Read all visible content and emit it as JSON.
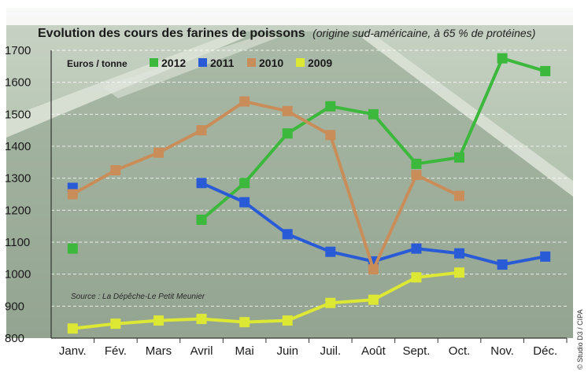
{
  "chart_data": {
    "type": "line",
    "title": "Evolution des cours des farines de poissons",
    "subtitle": "(origine sud-américaine, à 65 % de protéines)",
    "unit_label": "Euros / tonne",
    "source": "Source : La Dépêche-Le Petit Meunier",
    "credit": "© Studio D3 / CIPA",
    "categories": [
      "Janv.",
      "Fév.",
      "Mars",
      "Avril",
      "Mai",
      "Juin",
      "Juil.",
      "Août",
      "Sept.",
      "Oct.",
      "Nov.",
      "Déc."
    ],
    "ylim": [
      800,
      1700
    ],
    "yticks": [
      800,
      900,
      1000,
      1100,
      1200,
      1300,
      1400,
      1500,
      1600,
      1700
    ],
    "grid": true,
    "legend_position": "top-left",
    "series": [
      {
        "name": "2012",
        "color": "#3cb83c",
        "values": [
          1080,
          null,
          null,
          1170,
          1285,
          1440,
          1525,
          1500,
          1345,
          1365,
          1675,
          1635
        ]
      },
      {
        "name": "2011",
        "color": "#2a5bd7",
        "values": [
          1270,
          null,
          null,
          1285,
          1225,
          1125,
          1070,
          1040,
          1080,
          1065,
          1030,
          1055
        ]
      },
      {
        "name": "2010",
        "color": "#c98d5a",
        "values": [
          1250,
          1325,
          1380,
          1450,
          1540,
          1510,
          1435,
          1015,
          1310,
          1245,
          null,
          null
        ]
      },
      {
        "name": "2009",
        "color": "#dde835",
        "values": [
          830,
          845,
          855,
          860,
          850,
          855,
          910,
          920,
          990,
          1005,
          null,
          null
        ]
      }
    ]
  }
}
